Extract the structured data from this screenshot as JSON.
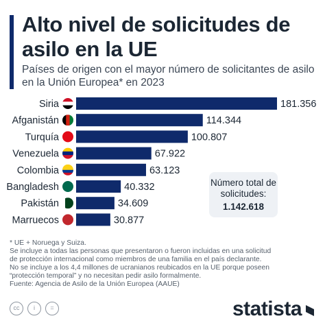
{
  "title": "Alto nivel de solicitudes de asilo en la UE",
  "subtitle": "Países de origen con el mayor número de solicitantes de asilo en la Unión Europea* en 2023",
  "total_label": "Número total de solicitudes:",
  "total_value": "1.142.618",
  "notes": [
    "* UE + Noruega y Suiza.",
    "Se incluye a todas las personas que presentaron o fueron incluidas en una solicitud",
    "de protección internacional como miembros de una familia en el país declarante.",
    "No se incluye a los 4,4 millones de ucranianos reubicados en la UE porque poseen",
    "“protección temporal” y no necesitan pedir asilo formalmente.",
    "Fuente: Agencia de Asilo de la Unión Europea (AAUE)"
  ],
  "brand": "statista",
  "colors": {
    "bar": "#0f2a6b",
    "accent": "#0f2a6b",
    "text": "#1b2633",
    "box": "#eef1f5"
  },
  "chart_data": {
    "type": "bar",
    "orientation": "horizontal",
    "categories": [
      "Siria",
      "Afganistán",
      "Turquía",
      "Venezuela",
      "Colombia",
      "Bangladesh",
      "Pakistán",
      "Marruecos"
    ],
    "values": [
      181356,
      114344,
      100807,
      67922,
      63123,
      40332,
      34609,
      30877
    ],
    "value_labels": [
      "181.356",
      "114.344",
      "100.807",
      "67.922",
      "63.123",
      "40.332",
      "34.609",
      "30.877"
    ],
    "flag_icons": [
      "flag-syria-icon",
      "flag-afghanistan-icon",
      "flag-turkey-icon",
      "flag-venezuela-icon",
      "flag-colombia-icon",
      "flag-bangladesh-icon",
      "flag-pakistan-icon",
      "flag-morocco-icon"
    ],
    "grid": false,
    "legend": "none"
  }
}
